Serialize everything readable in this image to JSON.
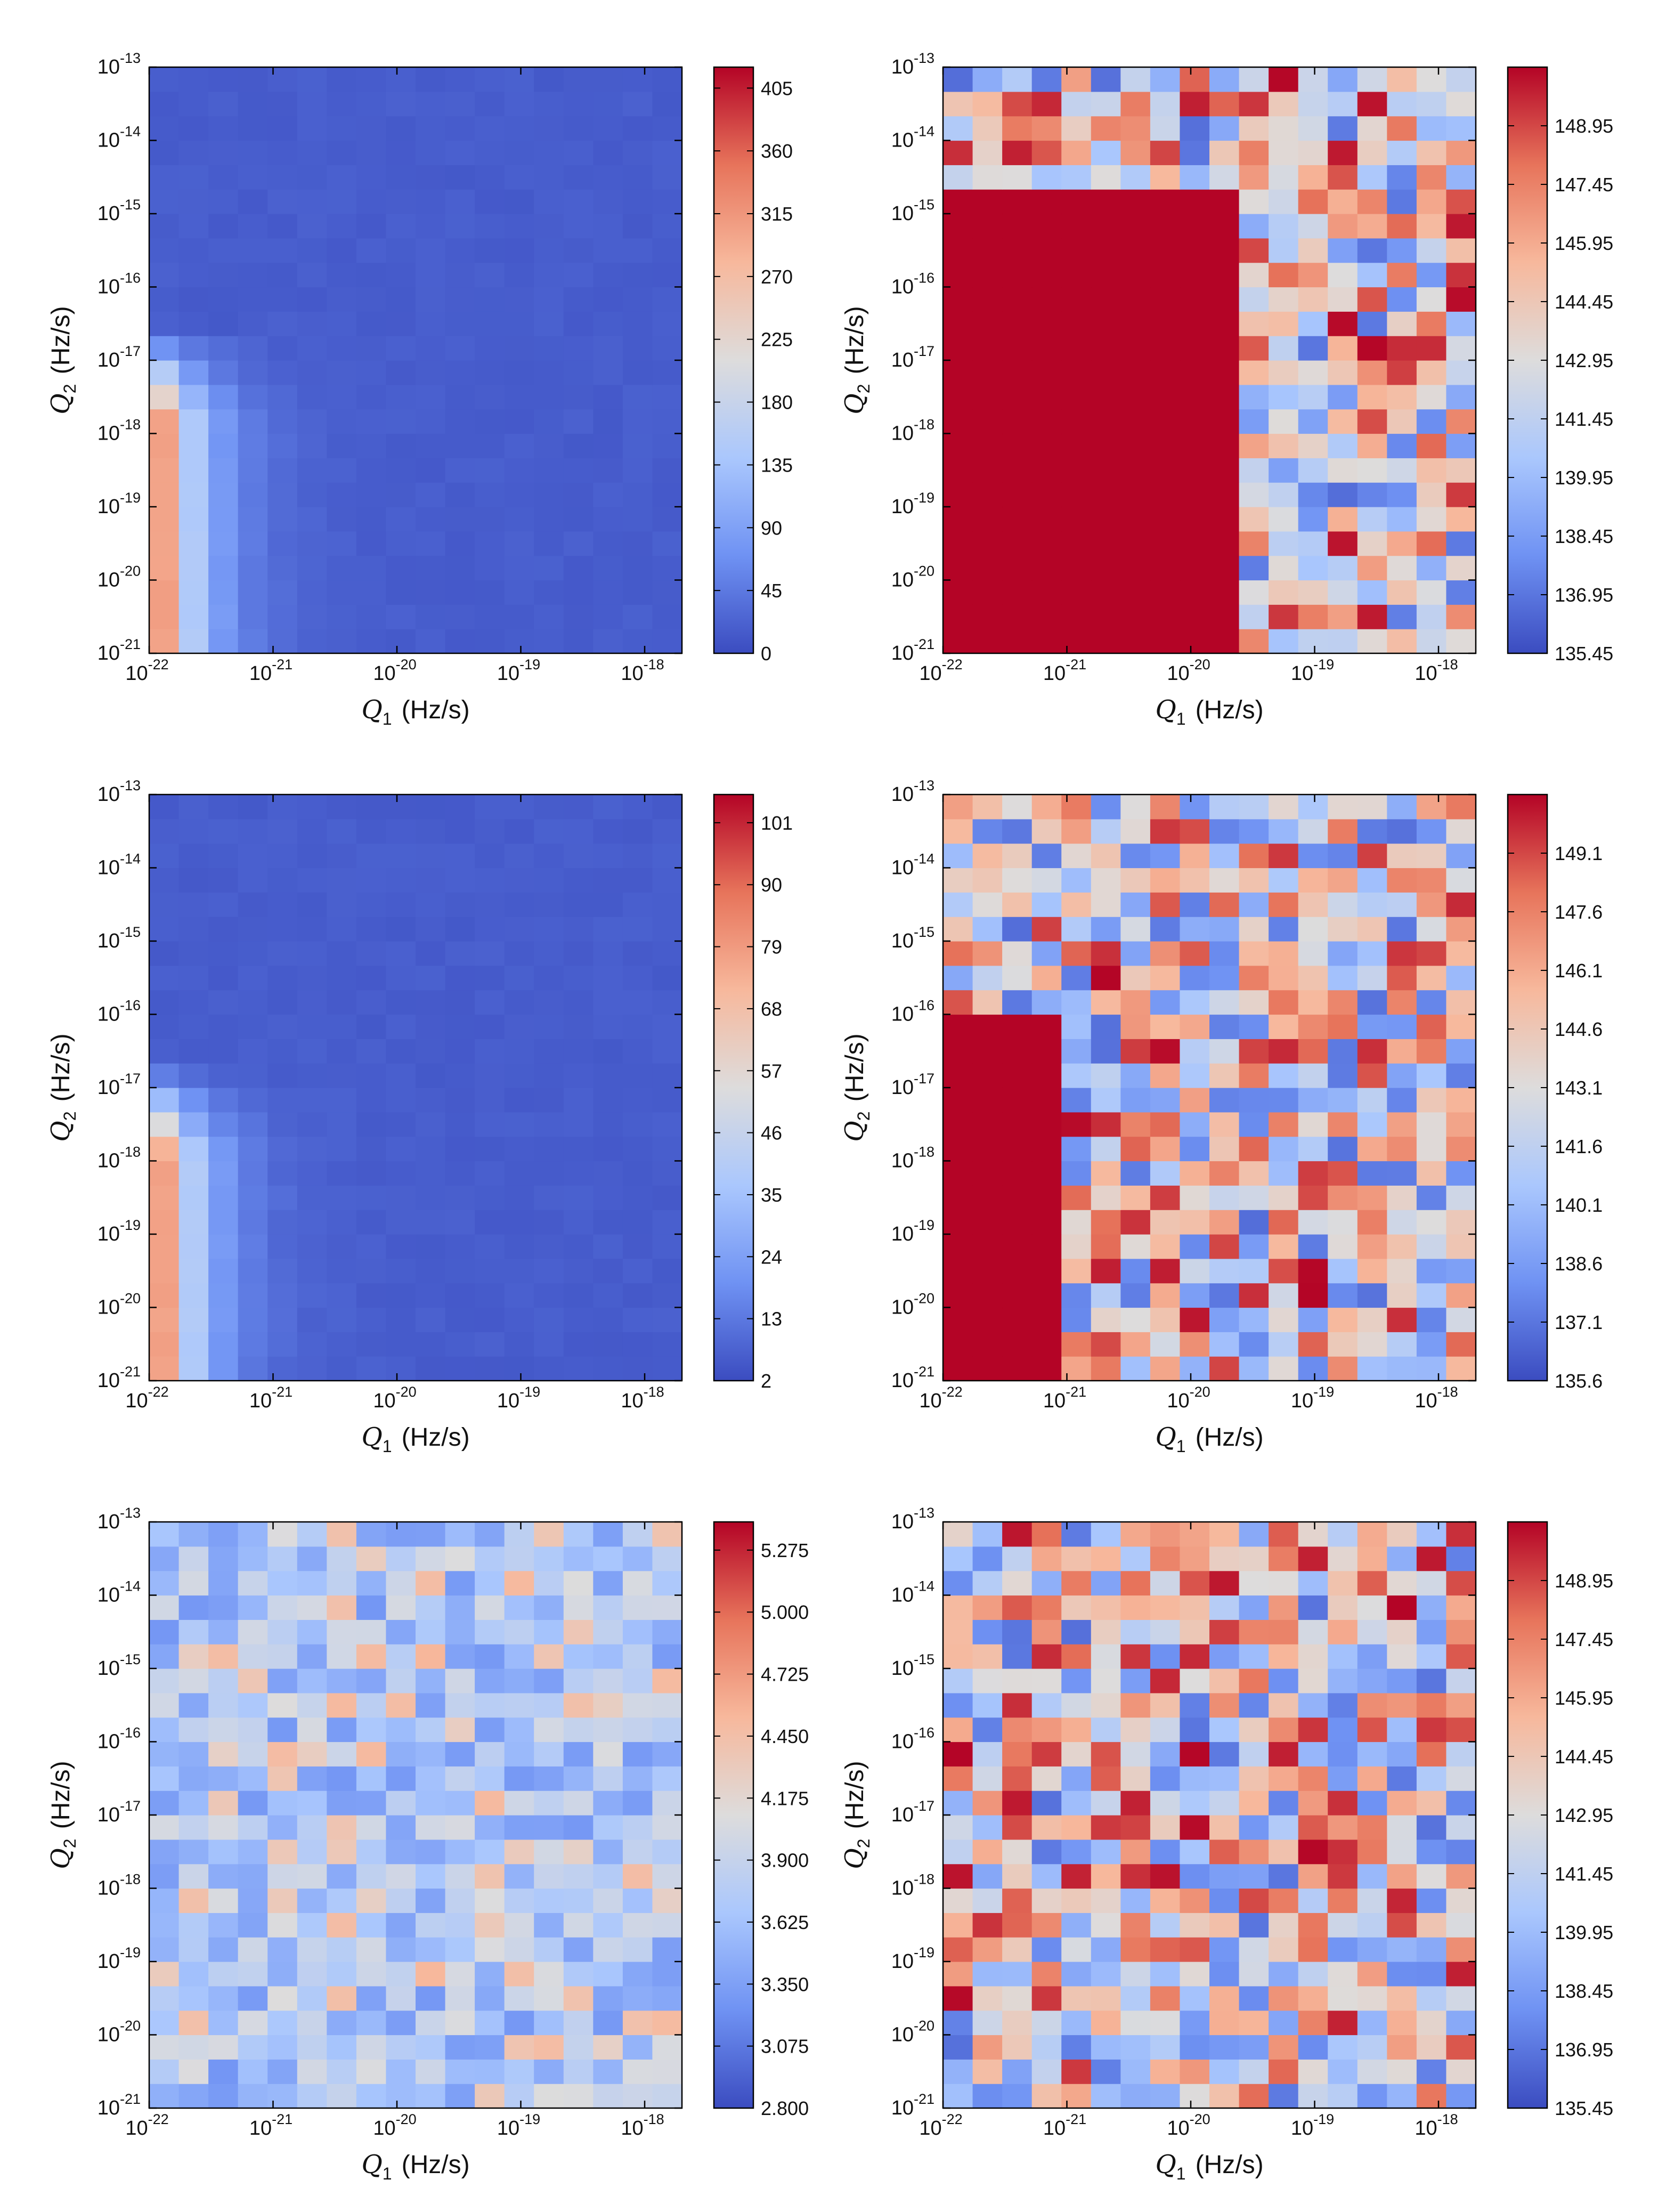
{
  "chart_data": [
    {
      "type": "heatmap",
      "title": "",
      "xlabel": "Q1 (Hz/s)",
      "ylabel": "Q2 (Hz/s)",
      "x_ticks": [
        "-22",
        "-21",
        "-20",
        "-19",
        "-18"
      ],
      "y_ticks": [
        "-21",
        "-20",
        "-19",
        "-18",
        "-17",
        "-16",
        "-15",
        "-14",
        "-13"
      ],
      "xlim": [
        1e-22,
        2e-18
      ],
      "ylim": [
        1e-21,
        1e-13
      ],
      "x_scale": "log",
      "y_scale": "log",
      "colorbar": {
        "min": 0,
        "max": 420,
        "ticks": [
          "0",
          "45",
          "90",
          "135",
          "180",
          "225",
          "270",
          "315",
          "360",
          "405"
        ]
      },
      "pattern": "edge",
      "edge": {
        "peak": 420,
        "base": 15,
        "q2_onset_exp": -17.2
      }
    },
    {
      "type": "heatmap",
      "title": "",
      "xlabel": "Q1 (Hz/s)",
      "ylabel": "Q2 (Hz/s)",
      "x_ticks": [
        "-22",
        "-21",
        "-20",
        "-19",
        "-18"
      ],
      "y_ticks": [
        "-21",
        "-20",
        "-19",
        "-18",
        "-17",
        "-16",
        "-15",
        "-14",
        "-13"
      ],
      "xlim": [
        1e-22,
        2e-18
      ],
      "ylim": [
        1e-21,
        1e-13
      ],
      "x_scale": "log",
      "y_scale": "log",
      "colorbar": {
        "min": 135.45,
        "max": 150.45,
        "ticks": [
          "135.45",
          "136.95",
          "138.45",
          "139.95",
          "141.45",
          "142.95",
          "144.45",
          "145.95",
          "147.45",
          "148.95"
        ]
      },
      "pattern": "noisy",
      "saturated_region": {
        "q1_max_exp": -19.6,
        "q2_max_exp": -14.5
      },
      "seed": 11
    },
    {
      "type": "heatmap",
      "title": "",
      "xlabel": "Q1 (Hz/s)",
      "ylabel": "Q2 (Hz/s)",
      "x_ticks": [
        "-22",
        "-21",
        "-20",
        "-19",
        "-18"
      ],
      "y_ticks": [
        "-21",
        "-20",
        "-19",
        "-18",
        "-17",
        "-16",
        "-15",
        "-14",
        "-13"
      ],
      "xlim": [
        1e-22,
        2e-18
      ],
      "ylim": [
        1e-21,
        1e-13
      ],
      "x_scale": "log",
      "y_scale": "log",
      "colorbar": {
        "min": 2,
        "max": 106,
        "ticks": [
          "2",
          "13",
          "24",
          "35",
          "46",
          "57",
          "68",
          "79",
          "90",
          "101"
        ]
      },
      "pattern": "edge",
      "edge": {
        "peak": 104,
        "base": 6,
        "q2_onset_exp": -17.3
      }
    },
    {
      "type": "heatmap",
      "title": "",
      "xlabel": "Q1 (Hz/s)",
      "ylabel": "Q2 (Hz/s)",
      "x_ticks": [
        "-22",
        "-21",
        "-20",
        "-19",
        "-18"
      ],
      "y_ticks": [
        "-21",
        "-20",
        "-19",
        "-18",
        "-17",
        "-16",
        "-15",
        "-14",
        "-13"
      ],
      "xlim": [
        1e-22,
        2e-18
      ],
      "ylim": [
        1e-21,
        1e-13
      ],
      "x_scale": "log",
      "y_scale": "log",
      "colorbar": {
        "min": 135.6,
        "max": 150.6,
        "ticks": [
          "135.6",
          "137.1",
          "138.6",
          "140.1",
          "141.6",
          "143.1",
          "144.6",
          "146.1",
          "147.6",
          "149.1"
        ]
      },
      "pattern": "noisy",
      "saturated_region": {
        "q1_max_exp": -21.0,
        "q2_max_exp": -16.0
      },
      "seed": 23
    },
    {
      "type": "heatmap",
      "title": "",
      "xlabel": "Q1 (Hz/s)",
      "ylabel": "Q2 (Hz/s)",
      "x_ticks": [
        "-22",
        "-21",
        "-20",
        "-19",
        "-18"
      ],
      "y_ticks": [
        "-21",
        "-20",
        "-19",
        "-18",
        "-17",
        "-16",
        "-15",
        "-14",
        "-13"
      ],
      "xlim": [
        1e-22,
        2e-18
      ],
      "ylim": [
        1e-21,
        1e-13
      ],
      "x_scale": "log",
      "y_scale": "log",
      "colorbar": {
        "min": 2.8,
        "max": 5.4,
        "ticks": [
          "2.800",
          "3.075",
          "3.350",
          "3.625",
          "3.900",
          "4.175",
          "4.450",
          "4.725",
          "5.000",
          "5.275"
        ]
      },
      "pattern": "noisy_low",
      "seed": 37
    },
    {
      "type": "heatmap",
      "title": "",
      "xlabel": "Q1 (Hz/s)",
      "ylabel": "Q2 (Hz/s)",
      "x_ticks": [
        "-22",
        "-21",
        "-20",
        "-19",
        "-18"
      ],
      "y_ticks": [
        "-21",
        "-20",
        "-19",
        "-18",
        "-17",
        "-16",
        "-15",
        "-14",
        "-13"
      ],
      "xlim": [
        1e-22,
        2e-18
      ],
      "ylim": [
        1e-21,
        1e-13
      ],
      "x_scale": "log",
      "y_scale": "log",
      "colorbar": {
        "min": 135.45,
        "max": 150.45,
        "ticks": [
          "135.45",
          "136.95",
          "138.45",
          "139.95",
          "141.45",
          "142.95",
          "144.45",
          "145.95",
          "147.45",
          "148.95"
        ]
      },
      "pattern": "noisy",
      "seed": 53
    }
  ],
  "colormap": {
    "name": "coolwarm",
    "stops": [
      "#3b4cc0",
      "#6f92f3",
      "#aac7fd",
      "#dddcdc",
      "#f7b89c",
      "#e7745b",
      "#b40426"
    ]
  },
  "axis_text": {
    "tick_base": "10",
    "x_symbol": "Q",
    "x_sub": "1",
    "y_symbol": "Q",
    "y_sub": "2",
    "unit": "(Hz/s)"
  }
}
